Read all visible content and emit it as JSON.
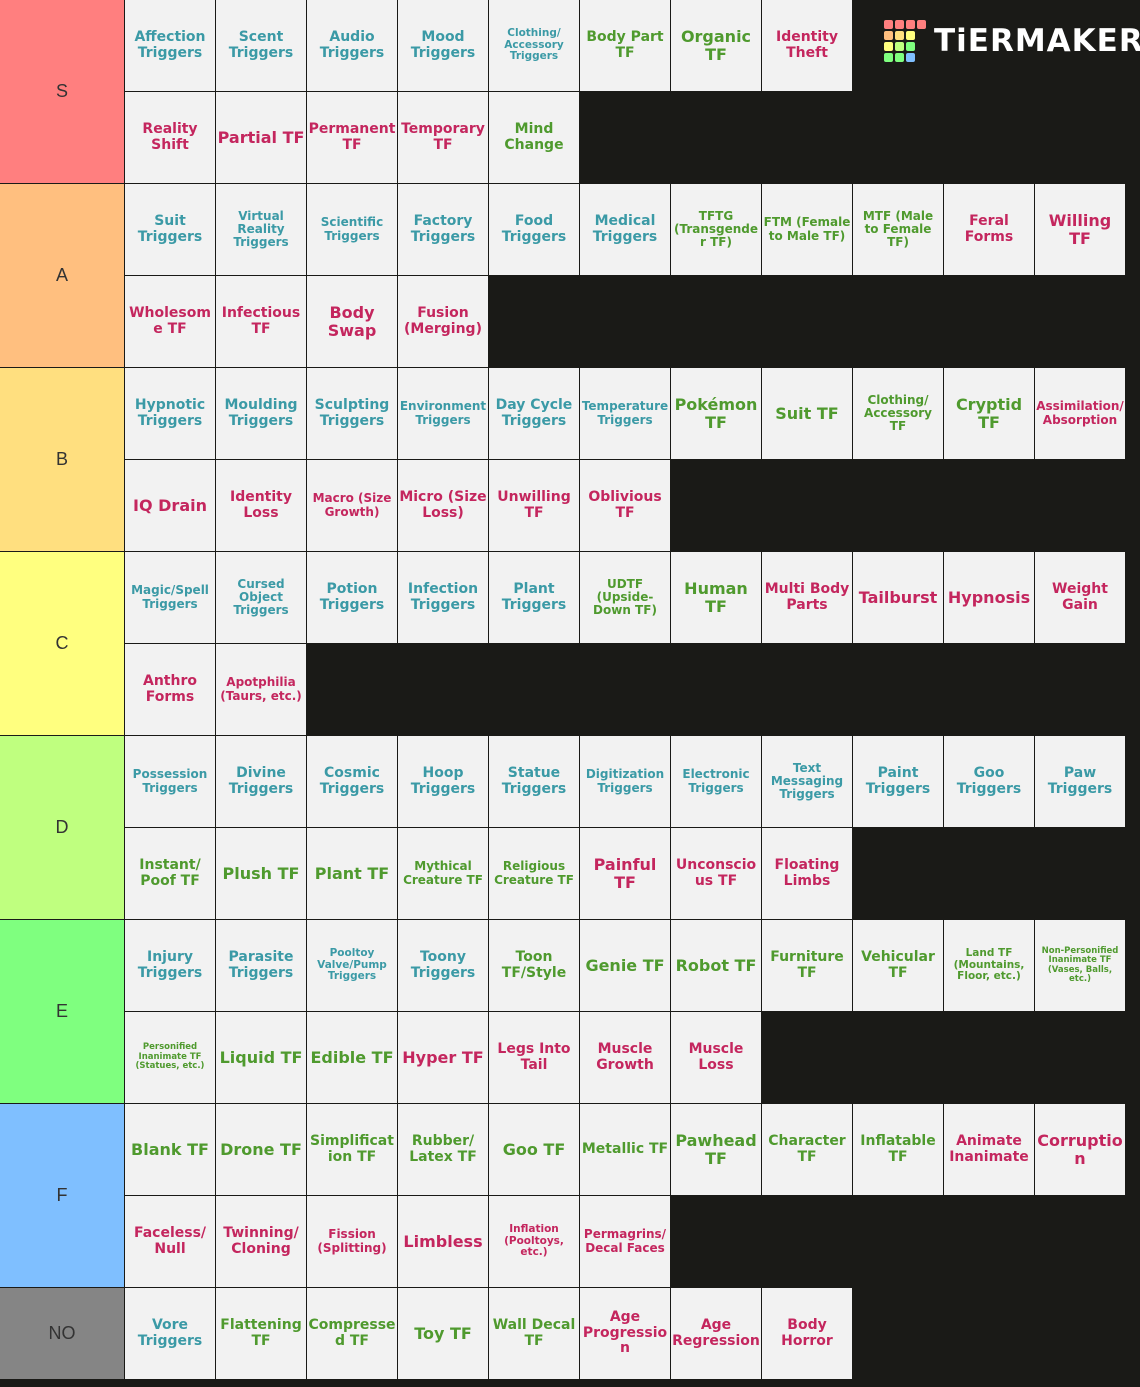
{
  "logo": "TiERMAKER",
  "tiers": [
    {
      "label": "S",
      "color": "#ff7f7f",
      "rows": [
        [
          {
            "text": "Affection Triggers",
            "color": "#3b9aa6"
          },
          {
            "text": "Scent Triggers",
            "color": "#3b9aa6"
          },
          {
            "text": "Audio Triggers",
            "color": "#3b9aa6"
          },
          {
            "text": "Mood Triggers",
            "color": "#3b9aa6"
          },
          {
            "text": "Clothing/ Accessory Triggers",
            "color": "#3b9aa6"
          },
          {
            "text": "Body Part TF",
            "color": "#4f9a2e"
          },
          {
            "text": "Organic TF",
            "color": "#4f9a2e"
          },
          {
            "text": "Identity Theft",
            "color": "#c4265e"
          }
        ],
        [
          {
            "text": "Reality Shift",
            "color": "#c4265e"
          },
          {
            "text": "Partial TF",
            "color": "#c4265e"
          },
          {
            "text": "Permanent TF",
            "color": "#c4265e"
          },
          {
            "text": "Temporary TF",
            "color": "#c4265e"
          },
          {
            "text": "Mind Change",
            "color": "#4f9a2e"
          }
        ]
      ]
    },
    {
      "label": "A",
      "color": "#ffbf7f",
      "rows": [
        [
          {
            "text": "Suit Triggers",
            "color": "#3b9aa6"
          },
          {
            "text": "Virtual Reality Triggers",
            "color": "#3b9aa6"
          },
          {
            "text": "Scientific Triggers",
            "color": "#3b9aa6"
          },
          {
            "text": "Factory Triggers",
            "color": "#3b9aa6"
          },
          {
            "text": "Food Triggers",
            "color": "#3b9aa6"
          },
          {
            "text": "Medical Triggers",
            "color": "#3b9aa6"
          },
          {
            "text": "TFTG (Transgender TF)",
            "color": "#4f9a2e"
          },
          {
            "text": "FTM (Female to Male TF)",
            "color": "#4f9a2e"
          },
          {
            "text": "MTF (Male to Female TF)",
            "color": "#4f9a2e"
          },
          {
            "text": "Feral Forms",
            "color": "#c4265e"
          },
          {
            "text": "Willing TF",
            "color": "#c4265e"
          }
        ],
        [
          {
            "text": "Wholesome TF",
            "color": "#c4265e"
          },
          {
            "text": "Infectious TF",
            "color": "#c4265e"
          },
          {
            "text": "Body Swap",
            "color": "#c4265e"
          },
          {
            "text": "Fusion (Merging)",
            "color": "#c4265e"
          }
        ]
      ]
    },
    {
      "label": "B",
      "color": "#ffdf7f",
      "rows": [
        [
          {
            "text": "Hypnotic Triggers",
            "color": "#3b9aa6"
          },
          {
            "text": "Moulding Triggers",
            "color": "#3b9aa6"
          },
          {
            "text": "Sculpting Triggers",
            "color": "#3b9aa6"
          },
          {
            "text": "Environment Triggers",
            "color": "#3b9aa6"
          },
          {
            "text": "Day Cycle Triggers",
            "color": "#3b9aa6"
          },
          {
            "text": "Temperature Triggers",
            "color": "#3b9aa6"
          },
          {
            "text": "Pokémon TF",
            "color": "#4f9a2e"
          },
          {
            "text": "Suit TF",
            "color": "#4f9a2e"
          },
          {
            "text": "Clothing/ Accessory TF",
            "color": "#4f9a2e"
          },
          {
            "text": "Cryptid TF",
            "color": "#4f9a2e"
          },
          {
            "text": "Assimilation/ Absorption",
            "color": "#c4265e"
          }
        ],
        [
          {
            "text": "IQ Drain",
            "color": "#c4265e"
          },
          {
            "text": "Identity Loss",
            "color": "#c4265e"
          },
          {
            "text": "Macro (Size Growth)",
            "color": "#c4265e"
          },
          {
            "text": "Micro (Size Loss)",
            "color": "#c4265e"
          },
          {
            "text": "Unwilling TF",
            "color": "#c4265e"
          },
          {
            "text": "Oblivious TF",
            "color": "#c4265e"
          }
        ]
      ]
    },
    {
      "label": "C",
      "color": "#ffff7f",
      "rows": [
        [
          {
            "text": "Magic/Spell Triggers",
            "color": "#3b9aa6"
          },
          {
            "text": "Cursed Object Triggers",
            "color": "#3b9aa6"
          },
          {
            "text": "Potion Triggers",
            "color": "#3b9aa6"
          },
          {
            "text": "Infection Triggers",
            "color": "#3b9aa6"
          },
          {
            "text": "Plant Triggers",
            "color": "#3b9aa6"
          },
          {
            "text": "UDTF (Upside-Down TF)",
            "color": "#4f9a2e"
          },
          {
            "text": "Human TF",
            "color": "#4f9a2e"
          },
          {
            "text": "Multi Body Parts",
            "color": "#c4265e"
          },
          {
            "text": "Tailburst",
            "color": "#c4265e"
          },
          {
            "text": "Hypnosis",
            "color": "#c4265e"
          },
          {
            "text": "Weight Gain",
            "color": "#c4265e"
          }
        ],
        [
          {
            "text": "Anthro Forms",
            "color": "#c4265e"
          },
          {
            "text": "Apotphilia (Taurs, etc.)",
            "color": "#c4265e"
          }
        ]
      ]
    },
    {
      "label": "D",
      "color": "#bfff7f",
      "rows": [
        [
          {
            "text": "Possession Triggers",
            "color": "#3b9aa6"
          },
          {
            "text": "Divine Triggers",
            "color": "#3b9aa6"
          },
          {
            "text": "Cosmic Triggers",
            "color": "#3b9aa6"
          },
          {
            "text": "Hoop Triggers",
            "color": "#3b9aa6"
          },
          {
            "text": "Statue Triggers",
            "color": "#3b9aa6"
          },
          {
            "text": "Digitization Triggers",
            "color": "#3b9aa6"
          },
          {
            "text": "Electronic Triggers",
            "color": "#3b9aa6"
          },
          {
            "text": "Text Messaging Triggers",
            "color": "#3b9aa6"
          },
          {
            "text": "Paint Triggers",
            "color": "#3b9aa6"
          },
          {
            "text": "Goo Triggers",
            "color": "#3b9aa6"
          },
          {
            "text": "Paw Triggers",
            "color": "#3b9aa6"
          }
        ],
        [
          {
            "text": "Instant/ Poof TF",
            "color": "#4f9a2e"
          },
          {
            "text": "Plush TF",
            "color": "#4f9a2e"
          },
          {
            "text": "Plant TF",
            "color": "#4f9a2e"
          },
          {
            "text": "Mythical Creature TF",
            "color": "#4f9a2e"
          },
          {
            "text": "Religious Creature TF",
            "color": "#4f9a2e"
          },
          {
            "text": "Painful TF",
            "color": "#c4265e"
          },
          {
            "text": "Unconscious TF",
            "color": "#c4265e"
          },
          {
            "text": "Floating Limbs",
            "color": "#c4265e"
          }
        ]
      ]
    },
    {
      "label": "E",
      "color": "#7fff7f",
      "rows": [
        [
          {
            "text": "Injury Triggers",
            "color": "#3b9aa6"
          },
          {
            "text": "Parasite Triggers",
            "color": "#3b9aa6"
          },
          {
            "text": "Pooltoy Valve/Pump Triggers",
            "color": "#3b9aa6"
          },
          {
            "text": "Toony Triggers",
            "color": "#3b9aa6"
          },
          {
            "text": "Toon TF/Style",
            "color": "#4f9a2e"
          },
          {
            "text": "Genie TF",
            "color": "#4f9a2e"
          },
          {
            "text": "Robot TF",
            "color": "#4f9a2e"
          },
          {
            "text": "Furniture TF",
            "color": "#4f9a2e"
          },
          {
            "text": "Vehicular TF",
            "color": "#4f9a2e"
          },
          {
            "text": "Land TF (Mountains, Floor, etc.)",
            "color": "#4f9a2e"
          },
          {
            "text": "Non-Personified Inanimate TF (Vases, Balls, etc.)",
            "color": "#4f9a2e"
          }
        ],
        [
          {
            "text": "Personified Inanimate TF (Statues, etc.)",
            "color": "#4f9a2e"
          },
          {
            "text": "Liquid TF",
            "color": "#4f9a2e"
          },
          {
            "text": "Edible TF",
            "color": "#4f9a2e"
          },
          {
            "text": "Hyper TF",
            "color": "#c4265e"
          },
          {
            "text": "Legs Into Tail",
            "color": "#c4265e"
          },
          {
            "text": "Muscle Growth",
            "color": "#c4265e"
          },
          {
            "text": "Muscle Loss",
            "color": "#c4265e"
          }
        ]
      ]
    },
    {
      "label": "F",
      "color": "#7fbfff",
      "rows": [
        [
          {
            "text": "Blank TF",
            "color": "#4f9a2e"
          },
          {
            "text": "Drone TF",
            "color": "#4f9a2e"
          },
          {
            "text": "Simplification TF",
            "color": "#4f9a2e"
          },
          {
            "text": "Rubber/ Latex TF",
            "color": "#4f9a2e"
          },
          {
            "text": "Goo TF",
            "color": "#4f9a2e"
          },
          {
            "text": "Metallic TF",
            "color": "#4f9a2e"
          },
          {
            "text": "Pawhead TF",
            "color": "#4f9a2e"
          },
          {
            "text": "Character TF",
            "color": "#4f9a2e"
          },
          {
            "text": "Inflatable TF",
            "color": "#4f9a2e"
          },
          {
            "text": "Animate Inanimate",
            "color": "#c4265e"
          },
          {
            "text": "Corruption",
            "color": "#c4265e"
          }
        ],
        [
          {
            "text": "Faceless/ Null",
            "color": "#c4265e"
          },
          {
            "text": "Twinning/ Cloning",
            "color": "#c4265e"
          },
          {
            "text": "Fission (Splitting)",
            "color": "#c4265e"
          },
          {
            "text": "Limbless",
            "color": "#c4265e"
          },
          {
            "text": "Inflation (Pooltoys, etc.)",
            "color": "#c4265e"
          },
          {
            "text": "Permagrins/ Decal Faces",
            "color": "#c4265e"
          }
        ]
      ]
    },
    {
      "label": "NO",
      "color": "#858585",
      "rows": [
        [
          {
            "text": "Vore Triggers",
            "color": "#3b9aa6"
          },
          {
            "text": "Flattening TF",
            "color": "#4f9a2e"
          },
          {
            "text": "Compressed TF",
            "color": "#4f9a2e"
          },
          {
            "text": "Toy TF",
            "color": "#4f9a2e"
          },
          {
            "text": "Wall Decal TF",
            "color": "#4f9a2e"
          },
          {
            "text": "Age Progression",
            "color": "#c4265e"
          },
          {
            "text": "Age Regression",
            "color": "#c4265e"
          },
          {
            "text": "Body Horror",
            "color": "#c4265e"
          }
        ]
      ]
    }
  ]
}
